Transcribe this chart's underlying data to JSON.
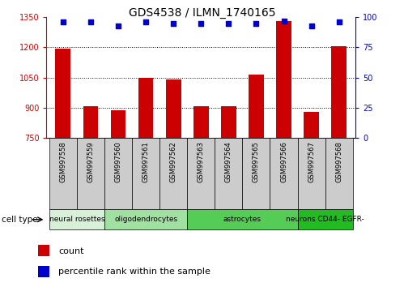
{
  "title": "GDS4538 / ILMN_1740165",
  "samples": [
    "GSM997558",
    "GSM997559",
    "GSM997560",
    "GSM997561",
    "GSM997562",
    "GSM997563",
    "GSM997564",
    "GSM997565",
    "GSM997566",
    "GSM997567",
    "GSM997568"
  ],
  "counts": [
    1193,
    908,
    887,
    1047,
    1040,
    908,
    907,
    1065,
    1330,
    878,
    1207
  ],
  "percentiles": [
    96,
    96,
    93,
    96,
    95,
    95,
    95,
    95,
    97,
    93,
    96
  ],
  "ylim_left": [
    750,
    1350
  ],
  "ylim_right": [
    0,
    100
  ],
  "yticks_left": [
    750,
    900,
    1050,
    1200,
    1350
  ],
  "yticks_right": [
    0,
    25,
    50,
    75,
    100
  ],
  "bar_color": "#cc0000",
  "dot_color": "#0000cc",
  "cell_types": [
    {
      "label": "neural rosettes",
      "start": 0,
      "end": 2,
      "color": "#d8f0d8"
    },
    {
      "label": "oligodendrocytes",
      "start": 2,
      "end": 5,
      "color": "#a0e0a0"
    },
    {
      "label": "astrocytes",
      "start": 5,
      "end": 9,
      "color": "#55cc55"
    },
    {
      "label": "neurons CD44- EGFR-",
      "start": 9,
      "end": 11,
      "color": "#22bb22"
    }
  ],
  "legend_count_label": "count",
  "legend_percentile_label": "percentile rank within the sample",
  "cell_type_label": "cell type",
  "gray_box_color": "#cccccc",
  "title_fontsize": 10,
  "axis_fontsize": 8,
  "tick_fontsize": 7,
  "sample_fontsize": 6
}
